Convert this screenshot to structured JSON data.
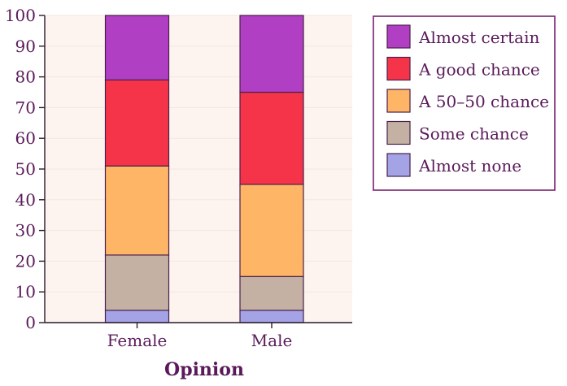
{
  "chart_data": {
    "type": "bar",
    "stacked": true,
    "title": "",
    "xlabel": "Opinion",
    "ylabel": "",
    "ylim": [
      0,
      100
    ],
    "yticks": [
      0,
      10,
      20,
      30,
      40,
      50,
      60,
      70,
      80,
      90,
      100
    ],
    "categories": [
      "Female",
      "Male"
    ],
    "series": [
      {
        "name": "Almost none",
        "color": "#a3a3e6",
        "values": [
          4,
          4
        ]
      },
      {
        "name": "Some chance",
        "color": "#c4b1a4",
        "values": [
          18,
          11
        ]
      },
      {
        "name": "A 50–50 chance",
        "color": "#ffb566",
        "values": [
          29,
          30
        ]
      },
      {
        "name": "A good chance",
        "color": "#f5344a",
        "values": [
          28,
          30
        ]
      },
      {
        "name": "Almost certain",
        "color": "#b03fc4",
        "values": [
          21,
          25
        ]
      }
    ],
    "legend_order": [
      "Almost certain",
      "A good chance",
      "A 50–50 chance",
      "Some chance",
      "Almost none"
    ],
    "legend_position": "top-right",
    "colors": {
      "plot_background": "#fdf4f0",
      "axis": "#2a1a2a",
      "bar_edge": "#4a1f4a",
      "legend_border": "#7a1f6e",
      "text": "#5a1a5a"
    }
  }
}
